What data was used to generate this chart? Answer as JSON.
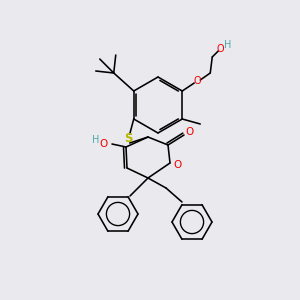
{
  "background_color": "#eaeaee",
  "atom_colors": {
    "S": "#b8b800",
    "O": "#ee0000",
    "H_gray": "#4aacac",
    "C": "#000000"
  },
  "figsize": [
    3.0,
    3.0
  ],
  "dpi": 100,
  "lw": 1.15,
  "ring_r": 28,
  "ph_r": 20
}
